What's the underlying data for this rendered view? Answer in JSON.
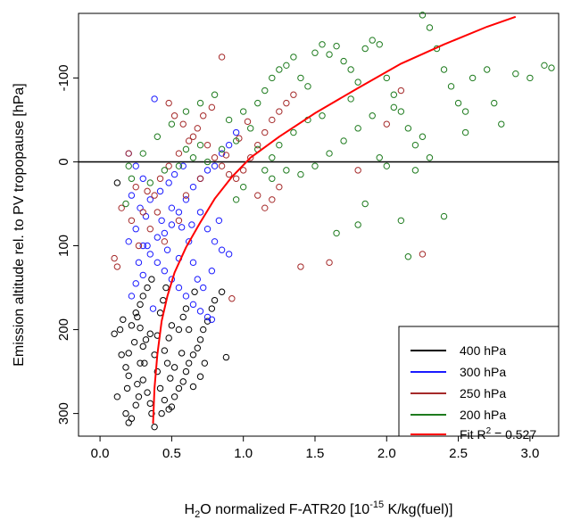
{
  "chart_data": {
    "type": "scatter",
    "title": "",
    "xlabel": {
      "base": "H",
      "sub": "2",
      "rest": "O normalized F-ATR20 [10",
      "sup": "-15",
      "tail": " K/kg(fuel)]"
    },
    "ylabel": "Emission altitude rel. to PV tropopause [hPa]",
    "xlim": [
      -0.15,
      3.2
    ],
    "ylim": [
      -177,
      327
    ],
    "y_inverted": true,
    "x_ticks": [
      0.0,
      0.5,
      1.0,
      1.5,
      2.0,
      2.5,
      3.0
    ],
    "x_tick_labels": [
      "0.0",
      "0.5",
      "1.0",
      "1.5",
      "2.0",
      "2.5",
      "3.0"
    ],
    "y_ticks": [
      -100,
      0,
      100,
      200,
      300
    ],
    "y_tick_labels": [
      "-100",
      "0",
      "100",
      "200",
      "300"
    ],
    "reference_line_y": 0,
    "grid": false,
    "legend_position": "bottom-right",
    "legend": [
      {
        "label": "400 hPa",
        "color": "#000000"
      },
      {
        "label": "300 hPa",
        "color": "#1a1aff"
      },
      {
        "label": "250 hPa",
        "color": "#a52a2a"
      },
      {
        "label": "200 hPa",
        "color": "#1e7b1e"
      }
    ],
    "fit": {
      "label_prefix": "Fit R",
      "label_sup": "2",
      "label_value": " = 0.527",
      "color": "#ff0000",
      "points": [
        [
          0.37,
          312
        ],
        [
          0.38,
          270
        ],
        [
          0.4,
          230
        ],
        [
          0.43,
          190
        ],
        [
          0.47,
          160
        ],
        [
          0.52,
          132
        ],
        [
          0.6,
          102
        ],
        [
          0.7,
          72
        ],
        [
          0.8,
          44
        ],
        [
          0.92,
          18
        ],
        [
          1.05,
          -5
        ],
        [
          1.25,
          -30
        ],
        [
          1.5,
          -58
        ],
        [
          1.8,
          -88
        ],
        [
          2.1,
          -117
        ],
        [
          2.4,
          -140
        ],
        [
          2.7,
          -161
        ],
        [
          2.9,
          -173
        ]
      ]
    },
    "series": [
      {
        "name": "400 hPa",
        "color": "#000000",
        "points": [
          [
            0.12,
            25
          ],
          [
            0.1,
            205
          ],
          [
            0.12,
            280
          ],
          [
            0.18,
            300
          ],
          [
            0.2,
            311
          ],
          [
            0.22,
            306
          ],
          [
            0.25,
            290
          ],
          [
            0.15,
            230
          ],
          [
            0.18,
            245
          ],
          [
            0.2,
            255
          ],
          [
            0.26,
            265
          ],
          [
            0.28,
            240
          ],
          [
            0.3,
            220
          ],
          [
            0.32,
            212
          ],
          [
            0.35,
            205
          ],
          [
            0.22,
            195
          ],
          [
            0.25,
            180
          ],
          [
            0.28,
            170
          ],
          [
            0.3,
            160
          ],
          [
            0.33,
            150
          ],
          [
            0.36,
            140
          ],
          [
            0.38,
            230
          ],
          [
            0.4,
            250
          ],
          [
            0.42,
            270
          ],
          [
            0.45,
            284
          ],
          [
            0.48,
            295
          ],
          [
            0.5,
            292
          ],
          [
            0.38,
            316
          ],
          [
            0.52,
            280
          ],
          [
            0.55,
            270
          ],
          [
            0.58,
            262
          ],
          [
            0.6,
            250
          ],
          [
            0.62,
            240
          ],
          [
            0.65,
            230
          ],
          [
            0.68,
            222
          ],
          [
            0.7,
            212
          ],
          [
            0.72,
            200
          ],
          [
            0.75,
            190
          ],
          [
            0.78,
            175
          ],
          [
            0.8,
            165
          ],
          [
            0.55,
            200
          ],
          [
            0.58,
            185
          ],
          [
            0.6,
            175
          ],
          [
            0.45,
            225
          ],
          [
            0.48,
            210
          ],
          [
            0.5,
            195
          ],
          [
            0.42,
            180
          ],
          [
            0.44,
            165
          ],
          [
            0.46,
            150
          ],
          [
            0.3,
            260
          ],
          [
            0.33,
            275
          ],
          [
            0.35,
            288
          ],
          [
            0.28,
            198
          ],
          [
            0.24,
            215
          ],
          [
            0.2,
            228
          ],
          [
            0.16,
            188
          ],
          [
            0.14,
            200
          ],
          [
            0.26,
            185
          ],
          [
            0.4,
            207
          ],
          [
            0.52,
            245
          ],
          [
            0.65,
            268
          ],
          [
            0.7,
            256
          ],
          [
            0.85,
            155
          ],
          [
            0.88,
            233
          ],
          [
            0.66,
            155
          ],
          [
            0.62,
            200
          ],
          [
            0.57,
            228
          ],
          [
            0.49,
            258
          ],
          [
            0.43,
            300
          ],
          [
            0.36,
            300
          ],
          [
            0.31,
            240
          ],
          [
            0.27,
            280
          ],
          [
            0.19,
            270
          ],
          [
            0.73,
            240
          ],
          [
            0.47,
            240
          ]
        ]
      },
      {
        "name": "300 hPa",
        "color": "#1a1aff",
        "points": [
          [
            0.38,
            -75
          ],
          [
            0.2,
            -10
          ],
          [
            0.25,
            5
          ],
          [
            0.3,
            20
          ],
          [
            0.22,
            40
          ],
          [
            0.28,
            55
          ],
          [
            0.32,
            65
          ],
          [
            0.25,
            80
          ],
          [
            0.2,
            95
          ],
          [
            0.3,
            100
          ],
          [
            0.35,
            110
          ],
          [
            0.4,
            120
          ],
          [
            0.45,
            130
          ],
          [
            0.5,
            140
          ],
          [
            0.55,
            150
          ],
          [
            0.6,
            160
          ],
          [
            0.65,
            170
          ],
          [
            0.7,
            178
          ],
          [
            0.75,
            185
          ],
          [
            0.78,
            188
          ],
          [
            0.4,
            90
          ],
          [
            0.45,
            85
          ],
          [
            0.5,
            75
          ],
          [
            0.55,
            60
          ],
          [
            0.6,
            45
          ],
          [
            0.65,
            30
          ],
          [
            0.7,
            20
          ],
          [
            0.75,
            10
          ],
          [
            0.8,
            5
          ],
          [
            0.85,
            -10
          ],
          [
            0.9,
            -20
          ],
          [
            0.95,
            -35
          ],
          [
            0.7,
            60
          ],
          [
            0.75,
            80
          ],
          [
            0.8,
            95
          ],
          [
            0.85,
            105
          ],
          [
            0.9,
            110
          ],
          [
            0.65,
            120
          ],
          [
            0.35,
            45
          ],
          [
            0.42,
            35
          ],
          [
            0.48,
            25
          ],
          [
            0.52,
            15
          ],
          [
            0.58,
            5
          ],
          [
            0.3,
            135
          ],
          [
            0.25,
            145
          ],
          [
            0.22,
            160
          ],
          [
            0.27,
            120
          ],
          [
            0.33,
            100
          ],
          [
            0.43,
            70
          ],
          [
            0.62,
            95
          ],
          [
            0.68,
            140
          ],
          [
            0.72,
            150
          ],
          [
            0.55,
            115
          ],
          [
            0.47,
            105
          ],
          [
            0.37,
            175
          ],
          [
            0.83,
            70
          ],
          [
            0.78,
            130
          ],
          [
            0.57,
            78
          ],
          [
            0.64,
            75
          ],
          [
            0.5,
            55
          ]
        ]
      },
      {
        "name": "250 hPa",
        "color": "#a52a2a",
        "points": [
          [
            0.85,
            -125
          ],
          [
            0.2,
            -10
          ],
          [
            0.25,
            30
          ],
          [
            0.15,
            55
          ],
          [
            0.1,
            115
          ],
          [
            0.12,
            125
          ],
          [
            0.22,
            70
          ],
          [
            0.3,
            60
          ],
          [
            0.38,
            40
          ],
          [
            0.42,
            20
          ],
          [
            0.48,
            5
          ],
          [
            0.55,
            -10
          ],
          [
            0.62,
            -25
          ],
          [
            0.68,
            -40
          ],
          [
            0.72,
            -55
          ],
          [
            0.78,
            -65
          ],
          [
            0.58,
            -45
          ],
          [
            0.52,
            -55
          ],
          [
            0.48,
            -70
          ],
          [
            0.65,
            -30
          ],
          [
            0.75,
            -20
          ],
          [
            0.8,
            -5
          ],
          [
            0.85,
            5
          ],
          [
            0.9,
            15
          ],
          [
            0.95,
            20
          ],
          [
            1.0,
            10
          ],
          [
            1.05,
            -5
          ],
          [
            1.1,
            -20
          ],
          [
            1.15,
            -35
          ],
          [
            1.2,
            -50
          ],
          [
            1.25,
            -60
          ],
          [
            1.3,
            -70
          ],
          [
            1.35,
            -80
          ],
          [
            1.1,
            40
          ],
          [
            1.15,
            55
          ],
          [
            1.2,
            45
          ],
          [
            1.25,
            30
          ],
          [
            1.4,
            125
          ],
          [
            1.6,
            120
          ],
          [
            1.8,
            10
          ],
          [
            2.0,
            -45
          ],
          [
            2.1,
            -85
          ],
          [
            2.25,
            110
          ],
          [
            0.35,
            80
          ],
          [
            0.45,
            95
          ],
          [
            0.7,
            20
          ],
          [
            0.88,
            -8
          ],
          [
            0.97,
            -28
          ],
          [
            1.03,
            -48
          ],
          [
            0.6,
            40
          ],
          [
            0.4,
            60
          ],
          [
            0.33,
            35
          ],
          [
            0.92,
            163
          ],
          [
            0.27,
            100
          ],
          [
            0.55,
            70
          ]
        ]
      },
      {
        "name": "200 hPa",
        "color": "#1e7b1e",
        "points": [
          [
            0.2,
            5
          ],
          [
            0.18,
            50
          ],
          [
            0.22,
            20
          ],
          [
            0.3,
            -10
          ],
          [
            0.4,
            -30
          ],
          [
            0.5,
            -45
          ],
          [
            0.6,
            -60
          ],
          [
            0.7,
            -70
          ],
          [
            0.8,
            -80
          ],
          [
            0.9,
            -50
          ],
          [
            1.0,
            -60
          ],
          [
            1.1,
            -70
          ],
          [
            1.15,
            -85
          ],
          [
            1.2,
            -100
          ],
          [
            1.25,
            -110
          ],
          [
            1.3,
            -115
          ],
          [
            1.35,
            -125
          ],
          [
            1.4,
            -100
          ],
          [
            1.45,
            -90
          ],
          [
            1.5,
            -130
          ],
          [
            1.55,
            -140
          ],
          [
            1.6,
            -128
          ],
          [
            1.65,
            -138
          ],
          [
            1.7,
            -120
          ],
          [
            1.75,
            -110
          ],
          [
            1.8,
            -95
          ],
          [
            1.85,
            -135
          ],
          [
            1.9,
            -145
          ],
          [
            1.95,
            -140
          ],
          [
            2.0,
            -100
          ],
          [
            2.05,
            -80
          ],
          [
            2.1,
            -60
          ],
          [
            2.15,
            -40
          ],
          [
            2.2,
            -20
          ],
          [
            2.25,
            -175
          ],
          [
            2.3,
            -160
          ],
          [
            2.35,
            -135
          ],
          [
            2.4,
            -110
          ],
          [
            2.45,
            -90
          ],
          [
            2.5,
            -70
          ],
          [
            2.55,
            -60
          ],
          [
            2.6,
            -100
          ],
          [
            2.7,
            -110
          ],
          [
            2.75,
            -70
          ],
          [
            2.8,
            -45
          ],
          [
            2.9,
            -105
          ],
          [
            3.0,
            -100
          ],
          [
            3.1,
            -115
          ],
          [
            3.15,
            -112
          ],
          [
            0.45,
            10
          ],
          [
            0.55,
            5
          ],
          [
            0.65,
            -5
          ],
          [
            0.75,
            0
          ],
          [
            0.85,
            -15
          ],
          [
            0.95,
            -25
          ],
          [
            1.05,
            -40
          ],
          [
            1.1,
            -15
          ],
          [
            1.2,
            -5
          ],
          [
            1.3,
            10
          ],
          [
            1.4,
            15
          ],
          [
            1.5,
            5
          ],
          [
            1.6,
            -10
          ],
          [
            1.7,
            -25
          ],
          [
            1.8,
            -40
          ],
          [
            1.9,
            -55
          ],
          [
            2.0,
            5
          ],
          [
            2.2,
            10
          ],
          [
            2.3,
            -5
          ],
          [
            2.4,
            65
          ],
          [
            2.1,
            70
          ],
          [
            1.8,
            75
          ],
          [
            2.05,
            -65
          ],
          [
            1.2,
            20
          ],
          [
            1.0,
            30
          ],
          [
            0.95,
            45
          ],
          [
            1.65,
            85
          ],
          [
            2.15,
            113
          ],
          [
            1.85,
            50
          ],
          [
            0.35,
            25
          ],
          [
            1.15,
            10
          ],
          [
            1.35,
            -35
          ],
          [
            1.45,
            -50
          ],
          [
            1.55,
            -55
          ],
          [
            1.75,
            -75
          ],
          [
            1.95,
            -5
          ],
          [
            2.25,
            -30
          ],
          [
            0.7,
            -20
          ],
          [
            0.6,
            -15
          ],
          [
            1.25,
            -20
          ],
          [
            2.55,
            -35
          ]
        ]
      }
    ]
  }
}
